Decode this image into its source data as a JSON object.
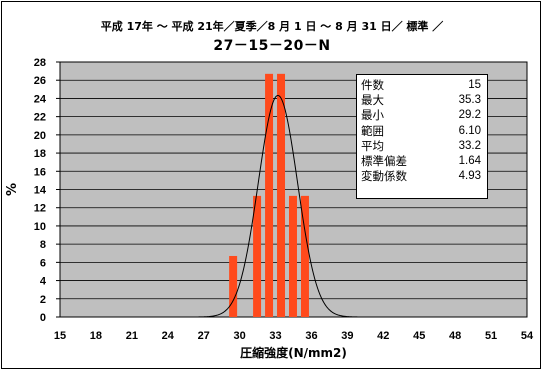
{
  "chart_data": {
    "type": "bar",
    "title": "平成 17年 ～ 平成 21年／夏季／8 月 1 日 ～ 8 月 31 日／ 標準 ／",
    "subtitle": "27－15－20－N",
    "xlabel": "圧縮強度(N/mm2)",
    "ylabel": "%",
    "xlim": [
      15,
      54
    ],
    "ylim": [
      0,
      28
    ],
    "x_ticks": [
      "15",
      "18",
      "21",
      "24",
      "27",
      "30",
      "33",
      "36",
      "39",
      "42",
      "45",
      "48",
      "51",
      "54"
    ],
    "y_ticks": [
      "0",
      "2",
      "4",
      "6",
      "8",
      "10",
      "12",
      "14",
      "16",
      "18",
      "20",
      "22",
      "24",
      "26",
      "28"
    ],
    "bin_width": 1,
    "bins": [
      {
        "x": 29.5,
        "value": 6.7
      },
      {
        "x": 31.5,
        "value": 13.3
      },
      {
        "x": 32.5,
        "value": 26.7
      },
      {
        "x": 33.5,
        "value": 26.7
      },
      {
        "x": 34.5,
        "value": 13.3
      },
      {
        "x": 35.5,
        "value": 13.3
      }
    ],
    "normal_curve": {
      "mean": 33.2,
      "sd": 1.64,
      "n": 15
    },
    "bar_color": "#ff4a1c",
    "plot_background": "#bfbfbf",
    "grid": true
  },
  "stats": [
    {
      "label": "件数",
      "value": "15"
    },
    {
      "label": "最大",
      "value": "35.3"
    },
    {
      "label": "最小",
      "value": "29.2"
    },
    {
      "label": "範囲",
      "value": "6.10"
    },
    {
      "label": "平均",
      "value": "33.2"
    },
    {
      "label": "標準偏差",
      "value": "1.64"
    },
    {
      "label": "変動係数",
      "value": "4.93"
    }
  ]
}
